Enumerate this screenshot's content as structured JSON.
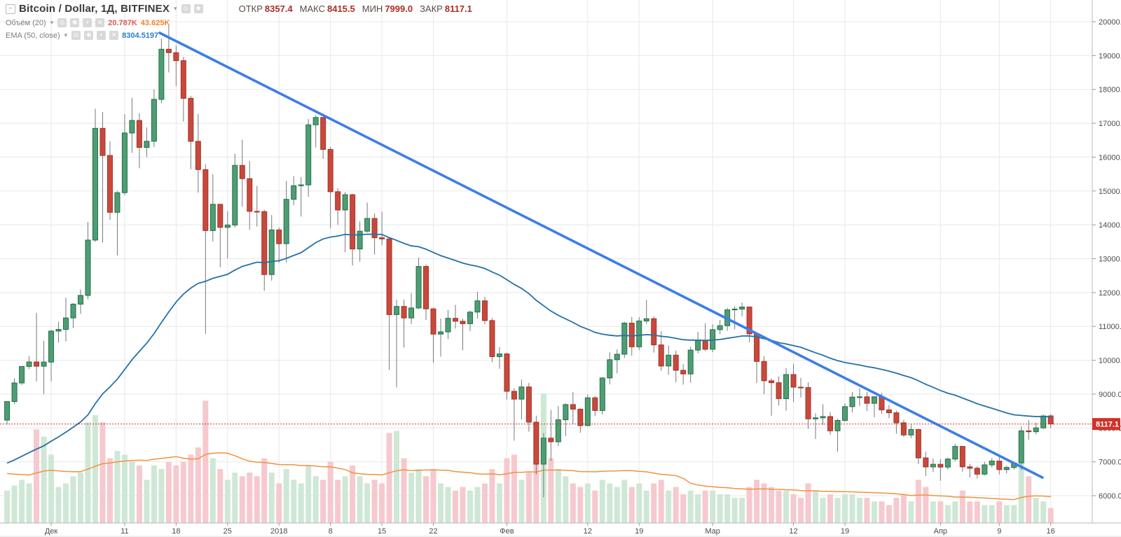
{
  "header": {
    "title": "Bitcoin / Dollar, 1Д, BITFINEX",
    "ohlc": [
      {
        "label": "ОТКР",
        "value": "8357.4"
      },
      {
        "label": "МАКС",
        "value": "8415.5"
      },
      {
        "label": "МИН",
        "value": "7999.0"
      },
      {
        "label": "ЗАКР",
        "value": "8117.1"
      }
    ]
  },
  "legend": {
    "volume": {
      "label": "Объём (20)",
      "value": "20.787K",
      "ma_value": "43.625K"
    },
    "ema": {
      "label": "EMA (50, close)",
      "value": "8304.5197"
    }
  },
  "icons": {
    "collapse": "−",
    "caret": "▾",
    "visibility": "⊙",
    "settings": "✱",
    "add": "+",
    "remove": "✕"
  },
  "colors": {
    "up_fill": "#4f9d72",
    "up_border": "#20714a",
    "down_fill": "#c9483c",
    "down_border": "#a23428",
    "wick": "#75797d",
    "vol_up": "#cfe8d6",
    "vol_down": "#f6c9ce",
    "ema_line": "#2471a8",
    "vol_ma_line": "#f0923f",
    "trendline": "#3d7de9",
    "grid": "#e8e8e8",
    "axis_text": "#4c4c4c",
    "axis_border": "#b9b9b9",
    "last_price": "#d0322a",
    "value_red": "#dd5b52",
    "value_orange": "#ef862f",
    "value_blue": "#2a7cd4",
    "ohlc_value": "#a93027",
    "ohlc_label": "#5a4b47",
    "legend_text": "#7d7d7d",
    "title_text": "#3a3a3a",
    "icon_bg": "#d9d9d9"
  },
  "chart_data": {
    "type": "candlestick",
    "title": "Bitcoin / Dollar, 1Д, BITFINEX",
    "interval": "1Д",
    "exchange": "BITFINEX",
    "last_price": 8117.1,
    "last_price_label": "8117.1",
    "price_ticks": [
      20000,
      19000,
      18000,
      17000,
      16000,
      15000,
      14000,
      13000,
      12000,
      11000,
      10000,
      9000,
      8000,
      7000,
      6000
    ],
    "price_range_visible": [
      5180,
      20640
    ],
    "grid": true,
    "volume_unit": "K",
    "time_ticks": [
      {
        "i": 6,
        "label": "Дек"
      },
      {
        "i": 16,
        "label": "11"
      },
      {
        "i": 23,
        "label": "18"
      },
      {
        "i": 30,
        "label": "25"
      },
      {
        "i": 37,
        "label": "2018"
      },
      {
        "i": 44,
        "label": "8"
      },
      {
        "i": 51,
        "label": "15"
      },
      {
        "i": 58,
        "label": "22"
      },
      {
        "i": 68,
        "label": "Фев"
      },
      {
        "i": 79,
        "label": "12"
      },
      {
        "i": 86,
        "label": "19"
      },
      {
        "i": 96,
        "label": "Мар"
      },
      {
        "i": 107,
        "label": "12"
      },
      {
        "i": 114,
        "label": "19"
      },
      {
        "i": 127,
        "label": "Апр"
      },
      {
        "i": 135,
        "label": "9"
      },
      {
        "i": 142,
        "label": "16"
      }
    ],
    "indicators": {
      "ema_period": 50,
      "ema_seed": 6890,
      "vol_ma_period": 20,
      "vol_ma_pad": 70
    },
    "trendline": {
      "x1_index": 20.77,
      "price1": 19670,
      "x2_index": 140.87,
      "price2": 6537
    },
    "candles": [
      [
        8232,
        8790,
        8100,
        8780,
        45
      ],
      [
        8780,
        9470,
        8710,
        9330,
        52
      ],
      [
        9330,
        9818,
        9270,
        9818,
        60
      ],
      [
        9818,
        10125,
        9740,
        9950,
        55
      ],
      [
        9950,
        11395,
        9375,
        9824,
        130
      ],
      [
        9824,
        10580,
        9000,
        9947,
        120
      ],
      [
        9947,
        10898,
        9380,
        10861,
        95
      ],
      [
        10861,
        11140,
        10520,
        10912,
        50
      ],
      [
        10912,
        11850,
        10555,
        11250,
        55
      ],
      [
        11250,
        11690,
        10950,
        11658,
        65
      ],
      [
        11658,
        12090,
        11370,
        11916,
        70
      ],
      [
        11916,
        14085,
        11800,
        13550,
        140
      ],
      [
        13550,
        17430,
        13500,
        16850,
        150
      ],
      [
        16850,
        17330,
        13482,
        16048,
        140
      ],
      [
        16048,
        16470,
        14150,
        14370,
        90
      ],
      [
        14370,
        15000,
        13100,
        14950,
        100
      ],
      [
        14950,
        17270,
        14880,
        16713,
        95
      ],
      [
        16713,
        17750,
        16125,
        17083,
        85
      ],
      [
        17083,
        17300,
        15670,
        16286,
        80
      ],
      [
        16286,
        16880,
        16000,
        16469,
        60
      ],
      [
        16469,
        18000,
        16300,
        17706,
        80
      ],
      [
        17706,
        19500,
        17590,
        19187,
        75
      ],
      [
        19187,
        19891,
        18500,
        19086,
        85
      ],
      [
        19086,
        19300,
        18100,
        18850,
        80
      ],
      [
        18850,
        18961,
        17050,
        17737,
        85
      ],
      [
        17737,
        17813,
        15642,
        16466,
        95
      ],
      [
        16466,
        17281,
        14953,
        15632,
        105
      ],
      [
        15632,
        15790,
        10776,
        13831,
        170
      ],
      [
        13831,
        15493,
        13511,
        14606,
        90
      ],
      [
        14606,
        14626,
        12747,
        13925,
        75
      ],
      [
        13925,
        14400,
        13005,
        13995,
        60
      ],
      [
        13995,
        16100,
        13925,
        15756,
        70
      ],
      [
        15756,
        16514,
        14534,
        15364,
        65
      ],
      [
        15364,
        15888,
        13850,
        14398,
        70
      ],
      [
        14398,
        15150,
        13950,
        14392,
        65
      ],
      [
        14392,
        14445,
        12050,
        12531,
        90
      ],
      [
        12531,
        14288,
        12350,
        13850,
        70
      ],
      [
        13850,
        13921,
        12877,
        13444,
        55
      ],
      [
        13444,
        15300,
        12890,
        14754,
        75
      ],
      [
        14754,
        15435,
        14579,
        15156,
        60
      ],
      [
        15156,
        15408,
        14244,
        15180,
        55
      ],
      [
        15180,
        17126,
        14832,
        16954,
        80
      ],
      [
        16954,
        17234,
        16286,
        17172,
        65
      ],
      [
        17172,
        17184,
        15950,
        16228,
        60
      ],
      [
        16228,
        16302,
        13902,
        14978,
        85
      ],
      [
        14978,
        15080,
        14000,
        14439,
        60
      ],
      [
        14439,
        14973,
        13191,
        14890,
        65
      ],
      [
        14890,
        14916,
        12801,
        13287,
        80
      ],
      [
        13287,
        14097,
        12915,
        13812,
        65
      ],
      [
        13812,
        14659,
        13772,
        14188,
        55
      ],
      [
        14188,
        14339,
        13125,
        13619,
        60
      ],
      [
        13619,
        14392,
        13400,
        13585,
        55
      ],
      [
        13585,
        13600,
        9714,
        11348,
        125
      ],
      [
        11348,
        11788,
        9199,
        11590,
        128
      ],
      [
        11590,
        11794,
        10378,
        11250,
        90
      ],
      [
        11250,
        11983,
        11069,
        11544,
        70
      ],
      [
        11544,
        13031,
        11517,
        12771,
        75
      ],
      [
        12771,
        12826,
        11191,
        11519,
        65
      ],
      [
        11519,
        11553,
        9927,
        10772,
        75
      ],
      [
        10772,
        11235,
        10106,
        10839,
        55
      ],
      [
        10839,
        11488,
        10626,
        11239,
        50
      ],
      [
        11239,
        11638,
        10934,
        11152,
        45
      ],
      [
        11152,
        11230,
        10300,
        11080,
        50
      ],
      [
        11080,
        11466,
        10861,
        11423,
        45
      ],
      [
        11423,
        12020,
        11231,
        11756,
        50
      ],
      [
        11756,
        11875,
        11063,
        11173,
        55
      ],
      [
        11173,
        11245,
        9950,
        10107,
        75
      ],
      [
        10107,
        10381,
        9751,
        10188,
        55
      ],
      [
        10188,
        10228,
        8840,
        9083,
        90
      ],
      [
        9083,
        9174,
        7625,
        8852,
        95
      ],
      [
        8852,
        9430,
        8251,
        9212,
        60
      ],
      [
        9212,
        9334,
        7890,
        8172,
        70
      ],
      [
        8172,
        8364,
        6627,
        6932,
        118
      ],
      [
        6932,
        7850,
        5947,
        7700,
        180
      ],
      [
        7700,
        8529,
        7022,
        7592,
        90
      ],
      [
        7592,
        8650,
        7466,
        8242,
        75
      ],
      [
        8242,
        8736,
        7758,
        8691,
        65
      ],
      [
        8691,
        9058,
        8111,
        8556,
        55
      ],
      [
        8556,
        8577,
        7861,
        8070,
        50
      ],
      [
        8070,
        8985,
        8055,
        8891,
        55
      ],
      [
        8891,
        8950,
        8355,
        8516,
        45
      ],
      [
        8516,
        9500,
        8400,
        9477,
        60
      ],
      [
        9477,
        10234,
        9288,
        10016,
        55
      ],
      [
        10016,
        10324,
        9612,
        10178,
        50
      ],
      [
        10178,
        11139,
        10065,
        11097,
        60
      ],
      [
        11097,
        11280,
        10137,
        10397,
        50
      ],
      [
        10397,
        11273,
        10296,
        11160,
        55
      ],
      [
        11160,
        11784,
        11071,
        11228,
        45
      ],
      [
        11228,
        11298,
        10226,
        10454,
        55
      ],
      [
        10454,
        10857,
        9690,
        9830,
        60
      ],
      [
        9830,
        10436,
        9570,
        10151,
        45
      ],
      [
        10151,
        10288,
        9352,
        9704,
        50
      ],
      [
        9704,
        9886,
        9280,
        9596,
        40
      ],
      [
        9596,
        10399,
        9336,
        10301,
        45
      ],
      [
        10301,
        10840,
        10206,
        10594,
        40
      ],
      [
        10594,
        11093,
        10273,
        10325,
        45
      ],
      [
        10325,
        11060,
        10237,
        10905,
        45
      ],
      [
        10905,
        11189,
        10767,
        11021,
        40
      ],
      [
        11021,
        11550,
        10870,
        11489,
        40
      ],
      [
        11489,
        11600,
        10915,
        11512,
        35
      ],
      [
        11512,
        11700,
        11300,
        11573,
        35
      ],
      [
        11573,
        11588,
        10534,
        10779,
        50
      ],
      [
        10779,
        10810,
        9328,
        9965,
        60
      ],
      [
        9965,
        10120,
        8995,
        9395,
        55
      ],
      [
        9395,
        9465,
        8363,
        9337,
        50
      ],
      [
        9337,
        9527,
        8660,
        8866,
        45
      ],
      [
        8866,
        9770,
        8512,
        9578,
        45
      ],
      [
        9578,
        9900,
        8775,
        9205,
        40
      ],
      [
        9205,
        9480,
        8900,
        9194,
        35
      ],
      [
        9194,
        9347,
        7972,
        8269,
        55
      ],
      [
        8269,
        8430,
        7675,
        8300,
        45
      ],
      [
        8300,
        8700,
        8090,
        8338,
        35
      ],
      [
        8338,
        8470,
        7800,
        7916,
        40
      ],
      [
        7916,
        8280,
        7300,
        8223,
        35
      ],
      [
        8223,
        8730,
        8180,
        8630,
        40
      ],
      [
        8630,
        9060,
        8460,
        8913,
        40
      ],
      [
        8913,
        9177,
        8650,
        8920,
        35
      ],
      [
        8920,
        9060,
        8500,
        8728,
        35
      ],
      [
        8728,
        8925,
        8315,
        8923,
        30
      ],
      [
        8923,
        9040,
        8420,
        8535,
        30
      ],
      [
        8535,
        8680,
        8290,
        8449,
        25
      ],
      [
        8449,
        8510,
        7830,
        8152,
        35
      ],
      [
        8152,
        8240,
        7740,
        7793,
        40
      ],
      [
        7793,
        8100,
        7700,
        7954,
        30
      ],
      [
        7954,
        7980,
        6935,
        7116,
        60
      ],
      [
        7116,
        7300,
        6580,
        6850,
        50
      ],
      [
        6850,
        7100,
        6700,
        6928,
        30
      ],
      [
        6928,
        7080,
        6440,
        6844,
        30
      ],
      [
        6844,
        7125,
        6770,
        7083,
        25
      ],
      [
        7083,
        7530,
        7020,
        7456,
        30
      ],
      [
        7456,
        7470,
        6710,
        6853,
        45
      ],
      [
        6853,
        6940,
        6540,
        6811,
        30
      ],
      [
        6811,
        6870,
        6510,
        6636,
        30
      ],
      [
        6636,
        7000,
        6600,
        6911,
        25
      ],
      [
        6911,
        7112,
        6830,
        7023,
        25
      ],
      [
        7023,
        7180,
        6630,
        6770,
        30
      ],
      [
        6770,
        6890,
        6660,
        6834,
        25
      ],
      [
        6834,
        6990,
        6770,
        6968,
        25
      ],
      [
        6968,
        8050,
        6755,
        7916,
        90
      ],
      [
        7916,
        8235,
        7650,
        7889,
        65
      ],
      [
        7889,
        8160,
        7810,
        8003,
        35
      ],
      [
        8003,
        8395,
        7970,
        8355,
        30
      ],
      [
        8357.4,
        8415.5,
        7999.0,
        8117.1,
        20.787
      ]
    ]
  }
}
